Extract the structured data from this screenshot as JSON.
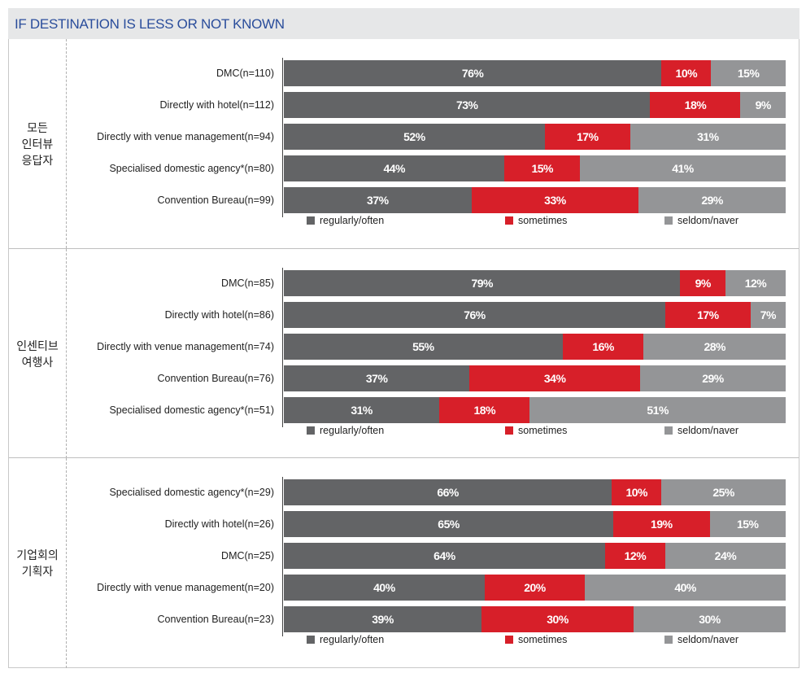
{
  "header": {
    "title": "IF DESTINATION IS LESS OR NOT KNOWN"
  },
  "colors": {
    "regular": "#636466",
    "sometimes": "#d71f29",
    "seldom": "#949597"
  },
  "legend": {
    "regular": "regularly/often",
    "sometimes": "sometimes",
    "seldom": "seldom/naver"
  },
  "chart_data": [
    {
      "type": "bar",
      "group": "모든\n인터뷰\n응답자",
      "categories": [
        "DMC(n=110)",
        "Directly with hotel(n=112)",
        "Directly with venue management(n=94)",
        "Specialised domestic agency*(n=80)",
        "Convention Bureau(n=99)"
      ],
      "series": [
        {
          "name": "regularly/often",
          "values": [
            76,
            73,
            52,
            44,
            37
          ]
        },
        {
          "name": "sometimes",
          "values": [
            10,
            18,
            17,
            15,
            33
          ]
        },
        {
          "name": "seldom/naver",
          "values": [
            15,
            9,
            31,
            41,
            29
          ]
        }
      ]
    },
    {
      "type": "bar",
      "group": "인센티브\n여행사",
      "categories": [
        "DMC(n=85)",
        "Directly with hotel(n=86)",
        "Directly with venue management(n=74)",
        "Convention Bureau(n=76)",
        "Specialised domestic agency*(n=51)"
      ],
      "series": [
        {
          "name": "regularly/often",
          "values": [
            79,
            76,
            55,
            37,
            31
          ]
        },
        {
          "name": "sometimes",
          "values": [
            9,
            17,
            16,
            34,
            18
          ]
        },
        {
          "name": "seldom/naver",
          "values": [
            12,
            7,
            28,
            29,
            51
          ]
        }
      ]
    },
    {
      "type": "bar",
      "group": "기업회의\n기획자",
      "categories": [
        "Specialised domestic agency*(n=29)",
        "Directly with hotel(n=26)",
        "DMC(n=25)",
        "Directly with venue management(n=20)",
        "Convention Bureau(n=23)"
      ],
      "series": [
        {
          "name": "regularly/often",
          "values": [
            66,
            65,
            64,
            40,
            39
          ]
        },
        {
          "name": "sometimes",
          "values": [
            10,
            19,
            12,
            20,
            30
          ]
        },
        {
          "name": "seldom/naver",
          "values": [
            25,
            15,
            24,
            40,
            30
          ]
        }
      ]
    }
  ]
}
